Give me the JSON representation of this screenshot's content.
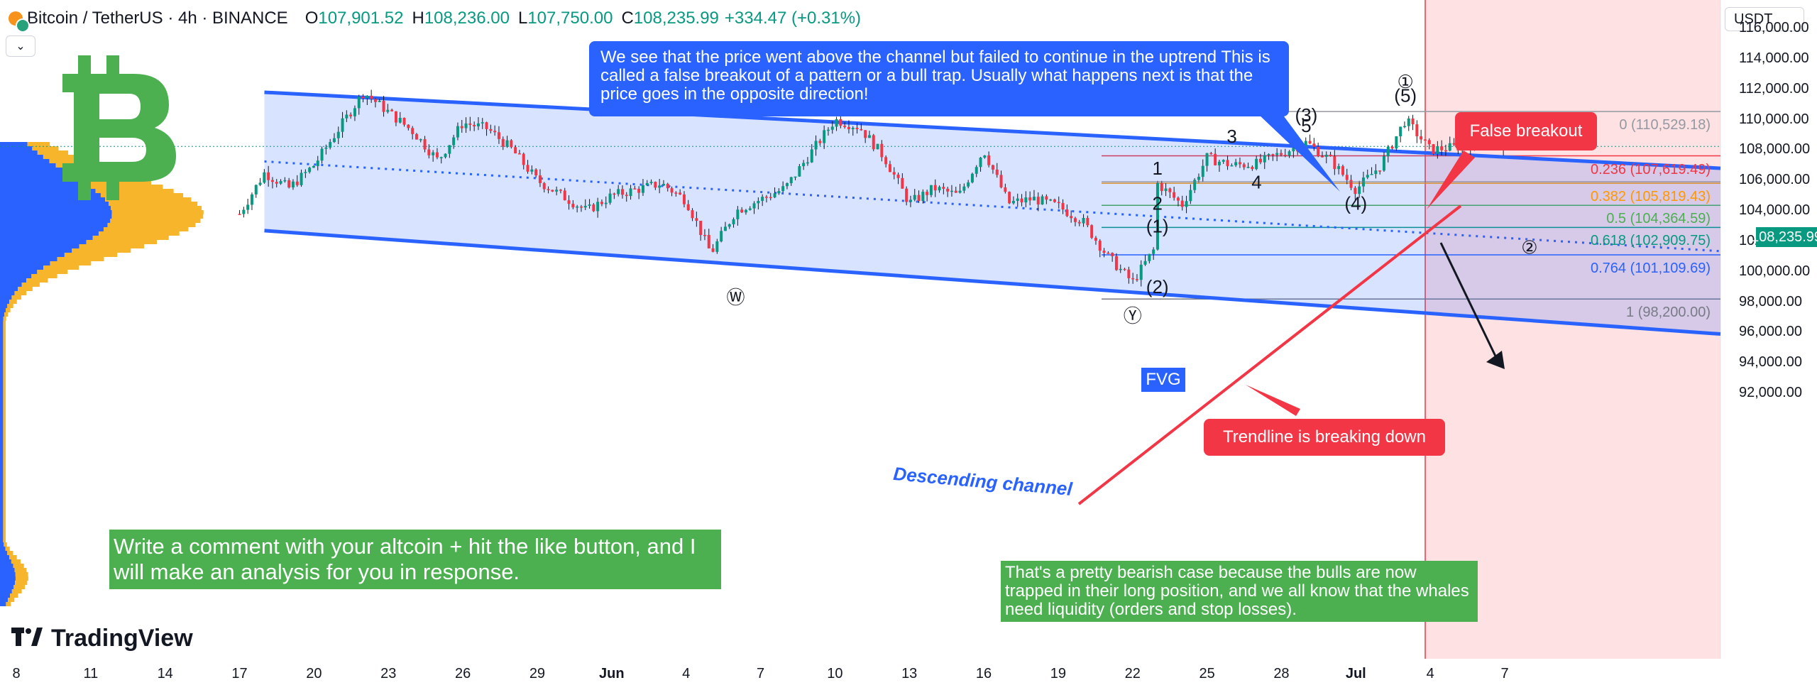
{
  "header": {
    "symbol": "Bitcoin / TetherUS · 4h · BINANCE",
    "open_label": "O",
    "open": "107,901.52",
    "high_label": "H",
    "high": "108,236.00",
    "low_label": "L",
    "low": "107,750.00",
    "close_label": "C",
    "close": "108,235.99",
    "change": "+334.47 (+0.31%)"
  },
  "dropdown_icon": "chevron-down-icon",
  "currency": "USDT",
  "current_price": "108,235.99",
  "colors": {
    "channel": "#2962ff",
    "bull": "#089981",
    "bear": "#f23645",
    "volume_profile": "#f7b52c",
    "btc_logo": "#4caf50"
  },
  "annotations": {
    "blue_note": "We see that the price went above the channel but failed to continue in the uptrend This is called a false breakout of a pattern or a bull trap. Usually what happens next is that the price goes in the opposite direction!",
    "false_breakout": "False breakout",
    "trendline": "Trendline is breaking down",
    "green_left": "Write a comment with your altcoin + hit the like button, and I will make an analysis for you in response.",
    "green_right": "That's a pretty bearish case because the bulls are now trapped in their long position, and we all know that the whales need liquidity (orders and stop losses).",
    "channel_label": "Descending channel",
    "fvg": "FVG",
    "brand": "TradingView"
  },
  "chart_data": {
    "type": "line",
    "title": "Bitcoin / TetherUS · 4h · BINANCE",
    "ylim": [
      91000,
      117000
    ],
    "y_ticks": [
      "116,000.00",
      "114,000.00",
      "112,000.00",
      "110,000.00",
      "108,000.00",
      "106,000.00",
      "104,000.00",
      "102,000.00",
      "100,000.00",
      "98,000.00",
      "96,000.00",
      "94,000.00",
      "92,000.00"
    ],
    "x_ticks": [
      "8",
      "11",
      "14",
      "17",
      "20",
      "23",
      "26",
      "29",
      "Jun",
      "4",
      "7",
      "10",
      "13",
      "16",
      "19",
      "22",
      "25",
      "28",
      "Jul",
      "4",
      "7"
    ],
    "price_path": [
      {
        "x": "May 17",
        "y": 103800
      },
      {
        "x": "May 18",
        "y": 106500
      },
      {
        "x": "May 19",
        "y": 105500
      },
      {
        "x": "May 20",
        "y": 107000
      },
      {
        "x": "May 22",
        "y": 111800
      },
      {
        "x": "May 24",
        "y": 109200
      },
      {
        "x": "May 25",
        "y": 107300
      },
      {
        "x": "May 26",
        "y": 109800
      },
      {
        "x": "May 27",
        "y": 109400
      },
      {
        "x": "May 28",
        "y": 108000
      },
      {
        "x": "May 29",
        "y": 106000
      },
      {
        "x": "May 31",
        "y": 104000
      },
      {
        "x": "Jun 1",
        "y": 105000
      },
      {
        "x": "Jun 3",
        "y": 105800
      },
      {
        "x": "Jun 4",
        "y": 104700
      },
      {
        "x": "Jun 5",
        "y": 101200
      },
      {
        "x": "Jun 6",
        "y": 104000
      },
      {
        "x": "Jun 8",
        "y": 105500
      },
      {
        "x": "Jun 10",
        "y": 110000
      },
      {
        "x": "Jun 11",
        "y": 109500
      },
      {
        "x": "Jun 12",
        "y": 107500
      },
      {
        "x": "Jun 13",
        "y": 104500
      },
      {
        "x": "Jun 14",
        "y": 105500
      },
      {
        "x": "Jun 15",
        "y": 105000
      },
      {
        "x": "Jun 16",
        "y": 108000
      },
      {
        "x": "Jun 17",
        "y": 104500
      },
      {
        "x": "Jun 18",
        "y": 104800
      },
      {
        "x": "Jun 19",
        "y": 104300
      },
      {
        "x": "Jun 20",
        "y": 103300
      },
      {
        "x": "Jun 21",
        "y": 101000
      },
      {
        "x": "Jun 22",
        "y": 99300
      },
      {
        "x": "Jun 23",
        "y": 101800
      },
      {
        "x": "Jun 23",
        "y": 105800
      },
      {
        "x": "Jun 24",
        "y": 104400
      },
      {
        "x": "Jun 25",
        "y": 107500
      },
      {
        "x": "Jun 26",
        "y": 107000
      },
      {
        "x": "Jun 27",
        "y": 107100
      },
      {
        "x": "Jun 29",
        "y": 108500
      },
      {
        "x": "Jun 30",
        "y": 107300
      },
      {
        "x": "Jul 1",
        "y": 105400
      },
      {
        "x": "Jul 2",
        "y": 107000
      },
      {
        "x": "Jul 3",
        "y": 110000
      },
      {
        "x": "Jul 4",
        "y": 108000
      },
      {
        "x": "Jul 5",
        "y": 108200
      },
      {
        "x": "Jul 6",
        "y": 108400
      },
      {
        "x": "Jul 6",
        "y": 109600
      },
      {
        "x": "Jul 7",
        "y": 108236
      }
    ],
    "fibonacci": [
      {
        "label": "0 (110,529.18)",
        "value": 110529.18,
        "color": "#9598a1"
      },
      {
        "label": "0.236 (107,619.49)",
        "value": 107619.49,
        "color": "#f23645"
      },
      {
        "label": "0.382 (105,819.43)",
        "value": 105819.43,
        "color": "#ff9800"
      },
      {
        "label": "0.5 (104,364.59)",
        "value": 104364.59,
        "color": "#4caf50"
      },
      {
        "label": "0.618 (102,909.75)",
        "value": 102909.75,
        "color": "#089981"
      },
      {
        "label": "0.764 (101,109.69)",
        "value": 101109.69,
        "color": "#2962ff"
      },
      {
        "label": "1 (98,200.00)",
        "value": 98200.0,
        "color": "#787b86"
      }
    ],
    "wave_labels": [
      {
        "text": "Ⓧ",
        "x": "Jun 10",
        "y": 111700
      },
      {
        "text": "Ⓦ",
        "x": "Jun 6",
        "y": 98200
      },
      {
        "text": "Ⓨ",
        "x": "Jun 22",
        "y": 97000
      },
      {
        "text": "①",
        "x": "Jul 3",
        "y": 112400
      },
      {
        "text": "(5)",
        "x": "Jul 3",
        "y": 111500
      },
      {
        "text": "(3)",
        "x": "Jun 29",
        "y": 110200
      },
      {
        "text": "5",
        "x": "Jun 29",
        "y": 109500
      },
      {
        "text": "3",
        "x": "Jun 26",
        "y": 108800
      },
      {
        "text": "1",
        "x": "Jun 23",
        "y": 106700
      },
      {
        "text": "4",
        "x": "Jun 27",
        "y": 105800
      },
      {
        "text": "2",
        "x": "Jun 23",
        "y": 104400
      },
      {
        "text": "(4)",
        "x": "Jul 1",
        "y": 104400
      },
      {
        "text": "(1)",
        "x": "Jun 23",
        "y": 102900
      },
      {
        "text": "(2)",
        "x": "Jun 23",
        "y": 98900
      },
      {
        "text": "②",
        "x": "Jul 8",
        "y": 101500
      }
    ]
  }
}
